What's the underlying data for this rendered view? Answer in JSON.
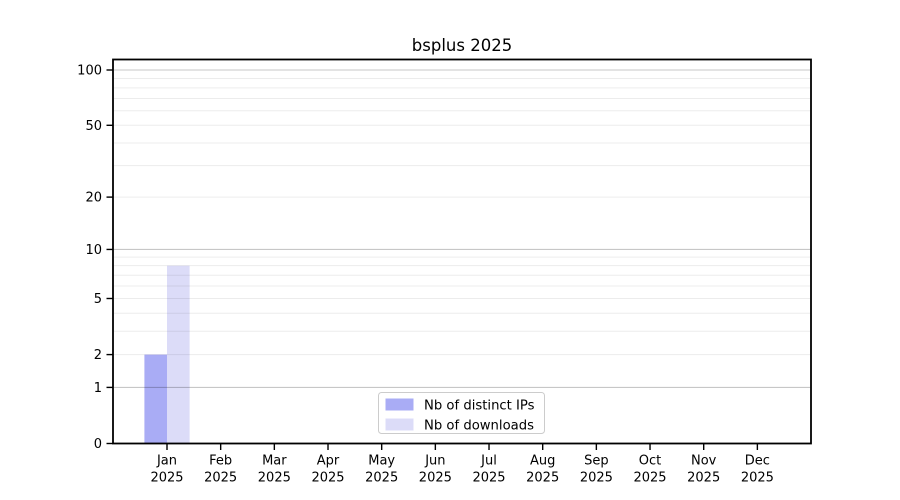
{
  "chart_data": {
    "type": "bar",
    "title": "bsplus 2025",
    "categories": [
      "Jan",
      "Feb",
      "Mar",
      "Apr",
      "May",
      "Jun",
      "Jul",
      "Aug",
      "Sep",
      "Oct",
      "Nov",
      "Dec"
    ],
    "category_year": "2025",
    "series": [
      {
        "name": "Nb of distinct IPs",
        "color": "#a9acf5",
        "values": [
          2,
          0,
          0,
          0,
          0,
          0,
          0,
          0,
          0,
          0,
          0,
          0
        ]
      },
      {
        "name": "Nb of downloads",
        "color": "#dcdcf8",
        "values": [
          8,
          0,
          0,
          0,
          0,
          0,
          0,
          0,
          0,
          0,
          0,
          0
        ]
      }
    ],
    "yscale": "log1p",
    "ylabel": "",
    "xlabel": "",
    "yticks": [
      0,
      1,
      2,
      5,
      10,
      20,
      50,
      100
    ],
    "decade_gridlines": [
      1,
      10,
      100
    ],
    "minor_gridlines": [
      2,
      3,
      4,
      5,
      6,
      7,
      8,
      9,
      20,
      30,
      40,
      50,
      60,
      70,
      80,
      90
    ],
    "ylim": [
      0,
      115
    ],
    "grid": "on",
    "legend_position": "lower center",
    "colors": {
      "spine": "#000000",
      "decade_grid": "#c7c7c7",
      "minor_grid": "#ececec",
      "legend_border": "#cccccc",
      "background": "#ffffff"
    }
  }
}
